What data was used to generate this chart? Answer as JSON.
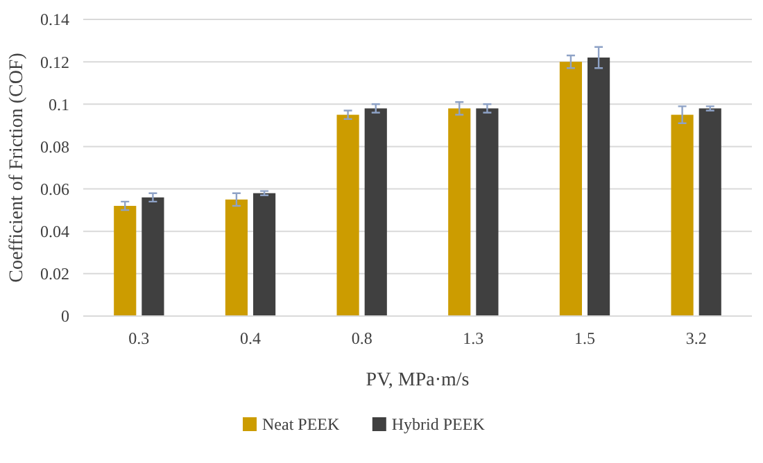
{
  "chart_data": {
    "type": "bar",
    "xlabel": "PV, MPa·m/s",
    "ylabel": "Coefficient of Friction (COF)",
    "categories": [
      "0.3",
      "0.4",
      "0.8",
      "1.3",
      "1.5",
      "3.2"
    ],
    "series": [
      {
        "name": "Neat PEEK",
        "color": "#cc9c00",
        "values": [
          0.052,
          0.055,
          0.095,
          0.098,
          0.12,
          0.095
        ],
        "errors": [
          0.002,
          0.003,
          0.002,
          0.003,
          0.003,
          0.004
        ]
      },
      {
        "name": "Hybrid PEEK",
        "color": "#404040",
        "values": [
          0.056,
          0.058,
          0.098,
          0.098,
          0.122,
          0.098
        ],
        "errors": [
          0.002,
          0.001,
          0.002,
          0.002,
          0.005,
          0.001
        ]
      }
    ],
    "ylim": [
      0,
      0.14
    ],
    "yticks": [
      0,
      0.02,
      0.04,
      0.06,
      0.08,
      0.1,
      0.12,
      0.14
    ],
    "grid": "y",
    "legend": "bottom"
  }
}
